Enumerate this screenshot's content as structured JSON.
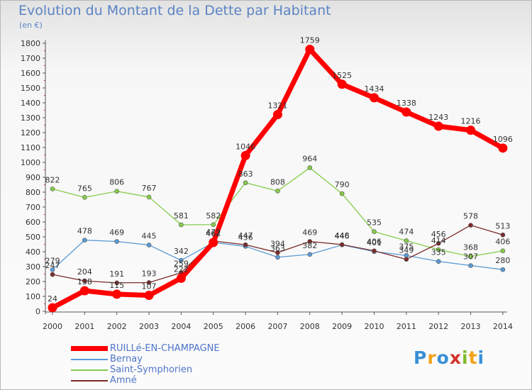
{
  "title": "Evolution du Montant de la Dette par Habitant",
  "subtitle": "(en €)",
  "logo_text": "Proxiti",
  "chart_data": {
    "type": "line",
    "title": "Evolution du Montant de la Dette par Habitant",
    "subtitle": "(en €)",
    "xlabel": "",
    "ylabel": "",
    "x": [
      2000,
      2001,
      2002,
      2003,
      2004,
      2005,
      2006,
      2007,
      2008,
      2009,
      2010,
      2011,
      2012,
      2013,
      2014
    ],
    "ylim": [
      0,
      1800
    ],
    "yticks": [
      0,
      100,
      200,
      300,
      400,
      500,
      600,
      700,
      800,
      900,
      1000,
      1100,
      1200,
      1300,
      1400,
      1500,
      1600,
      1700,
      1800
    ],
    "grid": false,
    "legend_position": "bottom-left",
    "series": [
      {
        "name": "RUILLé-EN-CHAMPAGNE",
        "color": "#ff0000",
        "values": [
          24,
          138,
          115,
          107,
          222,
          462,
          1046,
          1321,
          1759,
          1525,
          1434,
          1338,
          1243,
          1216,
          1096
        ],
        "labels": [
          "24",
          "138",
          "115",
          "107",
          "222",
          "462",
          "1046",
          "1321",
          "1759",
          "1525",
          "1434",
          "1338",
          "1243",
          "1216",
          "1096"
        ]
      },
      {
        "name": "Bernay",
        "color": "#5b9bd5",
        "values": [
          279,
          478,
          469,
          445,
          342,
          462,
          436,
          363,
          382,
          446,
          401,
          375,
          335,
          307,
          280
        ],
        "labels": [
          "279",
          "478",
          "469",
          "445",
          "342",
          "462",
          "436",
          "363",
          "382",
          "446",
          "401",
          "375",
          "335",
          "307",
          "280"
        ]
      },
      {
        "name": "Saint-Symphorien",
        "color": "#85cc4a",
        "values": [
          822,
          765,
          806,
          767,
          581,
          582,
          863,
          808,
          964,
          790,
          535,
          474,
          414,
          368,
          406
        ],
        "labels": [
          "822",
          "765",
          "806",
          "767",
          "581",
          "582",
          "863",
          "808",
          "964",
          "790",
          "535",
          "474",
          "414",
          "368",
          "406"
        ]
      },
      {
        "name": "Amné",
        "color": "#7b2b2b",
        "values": [
          247,
          204,
          191,
          193,
          259,
          472,
          447,
          394,
          469,
          448,
          406,
          349,
          456,
          578,
          513
        ],
        "labels": [
          "247",
          "204",
          "191",
          "193",
          "259",
          "472",
          "447",
          "394",
          "469",
          "448",
          "406",
          "349",
          "456",
          "578",
          "513"
        ]
      }
    ]
  }
}
